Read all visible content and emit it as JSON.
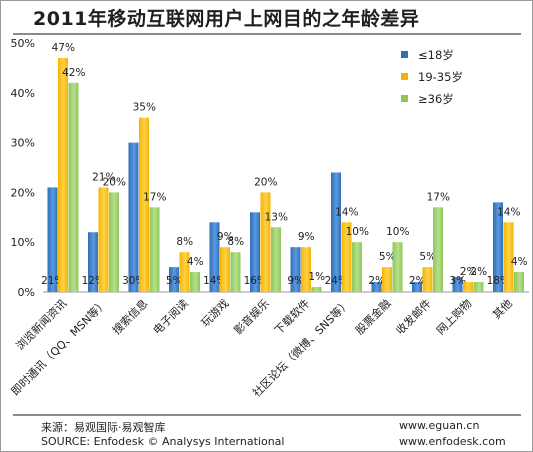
{
  "chart_data": {
    "type": "bar",
    "title": "2011年移动互联网用户上网目的之年龄差异",
    "categories": [
      "浏览新闻资讯",
      "即时通讯（QQ、MSN等）",
      "搜索信息",
      "电子阅读",
      "玩游戏",
      "影音娱乐",
      "下载软件",
      "社区论坛（微博、SNS等）",
      "股票金融",
      "收发邮件",
      "网上购物",
      "其他"
    ],
    "series": [
      {
        "name": "≤18岁",
        "values": [
          21,
          12,
          30,
          5,
          14,
          16,
          9,
          24,
          2,
          2,
          3,
          18
        ],
        "labels": [
          "21%",
          "12%",
          "30%",
          "5%",
          "14%",
          "16%",
          "9%",
          "24%",
          "2%",
          "2%",
          "3%",
          "18%"
        ],
        "color": "#2f6fb8"
      },
      {
        "name": "19-35岁",
        "values": [
          47,
          21,
          35,
          8,
          9,
          20,
          9,
          14,
          5,
          5,
          2,
          14
        ],
        "labels": [
          "47%",
          "21%",
          "35%",
          "8%",
          "9%",
          "20%",
          "9%",
          "14%",
          "5%",
          "5%",
          "2%",
          "14%"
        ],
        "color": "#f5b400"
      },
      {
        "name": "≥36岁",
        "values": [
          42,
          20,
          17,
          4,
          8,
          13,
          1,
          10,
          10,
          17,
          2,
          4
        ],
        "labels": [
          "42%",
          "20%",
          "17%",
          "4%",
          "8%",
          "13%",
          "1%",
          "10%",
          "10%",
          "17%",
          "2%",
          "4%"
        ],
        "color": "#8fc65a"
      }
    ],
    "ylim": [
      0,
      50
    ],
    "yticks": [
      "0%",
      "10%",
      "20%",
      "30%",
      "40%",
      "50%"
    ],
    "grid": false,
    "legend_position": "top-right"
  },
  "footer": {
    "source_cn": "来源：易观国际·易观智库",
    "source_en": "SOURCE: Enfodesk © Analysys International",
    "website_1": "www.eguan.cn",
    "website_2": "www.enfodesk.com"
  }
}
